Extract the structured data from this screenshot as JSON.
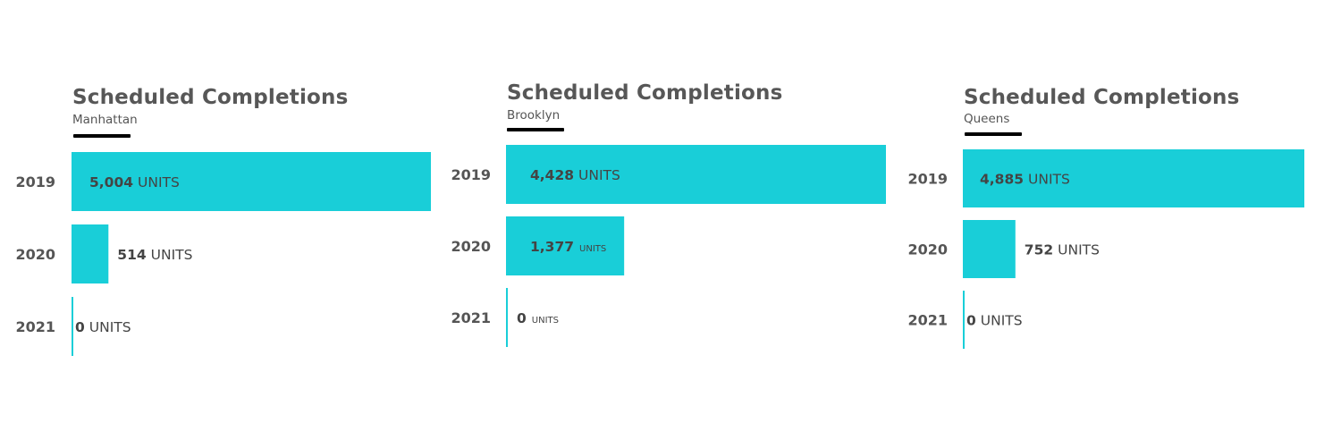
{
  "accent_color": "#19CED8",
  "chart_data": [
    {
      "type": "bar",
      "orientation": "horizontal",
      "title": "Scheduled Completions",
      "subtitle": "Manhattan",
      "categories": [
        "2019",
        "2020",
        "2021"
      ],
      "values": [
        5004,
        514,
        0
      ],
      "value_labels": [
        {
          "number": "5,004",
          "unit": "UNITS",
          "unit_style": "normal"
        },
        {
          "number": "514",
          "unit": "UNITS",
          "unit_style": "normal"
        },
        {
          "number": "0",
          "unit": "UNITS",
          "unit_style": "normal"
        }
      ],
      "color": "#19CED8",
      "grid": false,
      "legend": "none"
    },
    {
      "type": "bar",
      "orientation": "horizontal",
      "title": "Scheduled Completions",
      "subtitle": "Brooklyn",
      "categories": [
        "2019",
        "2020",
        "2021"
      ],
      "values": [
        4428,
        1377,
        0
      ],
      "value_labels": [
        {
          "number": "4,428",
          "unit": "UNITS",
          "unit_style": "normal"
        },
        {
          "number": "1,377",
          "unit": "UNITS",
          "unit_style": "small"
        },
        {
          "number": "0",
          "unit": "UNITS",
          "unit_style": "small"
        }
      ],
      "color": "#19CED8",
      "grid": false,
      "legend": "none"
    },
    {
      "type": "bar",
      "orientation": "horizontal",
      "title": "Scheduled Completions",
      "subtitle": "Queens",
      "categories": [
        "2019",
        "2020",
        "2021"
      ],
      "values": [
        4885,
        752,
        0
      ],
      "value_labels": [
        {
          "number": "4,885",
          "unit": "UNITS",
          "unit_style": "normal"
        },
        {
          "number": "752",
          "unit": "UNITS",
          "unit_style": "normal"
        },
        {
          "number": "0",
          "unit": "UNITS",
          "unit_style": "normal"
        }
      ],
      "color": "#19CED8",
      "grid": false,
      "legend": "none"
    }
  ]
}
